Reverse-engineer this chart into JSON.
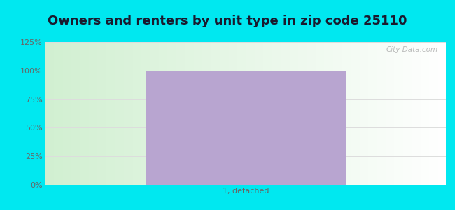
{
  "title": "Owners and renters by unit type in zip code 25110",
  "categories": [
    "1, detached"
  ],
  "values": [
    100
  ],
  "bar_color": "#b8a5d0",
  "ylim": [
    0,
    125
  ],
  "yticks": [
    0,
    25,
    50,
    75,
    100,
    125
  ],
  "ytick_labels": [
    "0%",
    "25%",
    "50%",
    "75%",
    "100%",
    "125%"
  ],
  "title_fontsize": 13,
  "title_fontweight": "bold",
  "title_color": "#1a1a2e",
  "outer_bg": "#00e8f0",
  "watermark_text": "City-Data.com",
  "grid_color": "#dddddd",
  "tick_color": "#666666",
  "tick_fontsize": 8,
  "bar_width": 0.5,
  "bg_color_left": "#d4f0d4",
  "bg_color_right": "#f0fff8",
  "bg_color_top": "#f8ffff",
  "bg_color_bottom": "#c8eec8"
}
